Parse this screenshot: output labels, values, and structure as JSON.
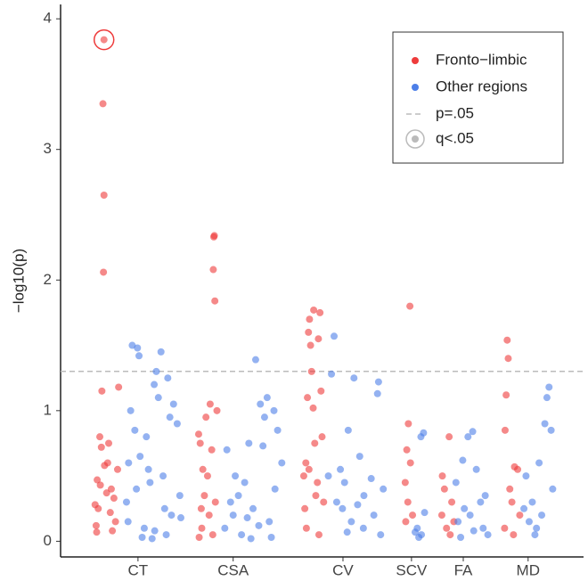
{
  "chart_data": {
    "type": "scatter",
    "ylabel": "−log10(p)",
    "xlim": [
      0,
      100
    ],
    "ylim": [
      -0.12,
      4.11
    ],
    "xticks": [
      {
        "value": 14.8,
        "label": "CT"
      },
      {
        "value": 33.0,
        "label": "CSA"
      },
      {
        "value": 54.0,
        "label": "CV"
      },
      {
        "value": 67.1,
        "label": "SCV"
      },
      {
        "value": 77.0,
        "label": "FA"
      },
      {
        "value": 89.4,
        "label": "MD"
      }
    ],
    "yticks": [
      0,
      1,
      2,
      3,
      4
    ],
    "grid": false,
    "legend": "top-right",
    "threshold": {
      "value": 1.301,
      "label": "p=.05",
      "color": "#bbbbbb"
    },
    "q_points": {
      "name": "q<.05",
      "color": "#ee3b3b",
      "x": [
        8.3
      ],
      "values": [
        3.84
      ]
    },
    "series": [
      {
        "name": "Fronto−limbic",
        "color": "#ee3b3b",
        "x": [
          8.3,
          8.1,
          8.3,
          8.2,
          7.9,
          7.5,
          9.2,
          7.8,
          9.0,
          8.4,
          10.9,
          7.0,
          7.6,
          9.7,
          8.8,
          10.2,
          6.6,
          7.2,
          9.5,
          10.5,
          6.8,
          9.9,
          6.9,
          11.1,
          29.4,
          29.3,
          29.2,
          29.5,
          28.6,
          29.9,
          27.8,
          26.4,
          26.7,
          28.9,
          27.2,
          28.1,
          27.5,
          29.6,
          26.9,
          28.4,
          27.0,
          29.1,
          26.5,
          48.4,
          49.6,
          47.6,
          47.4,
          49.3,
          47.8,
          48.0,
          49.8,
          47.2,
          48.3,
          50.0,
          48.6,
          46.9,
          47.5,
          46.5,
          49.1,
          48.8,
          50.3,
          46.7,
          47.0,
          49.4,
          66.8,
          66.5,
          66.2,
          66.9,
          65.9,
          66.4,
          67.3,
          66.0,
          74.3,
          73.0,
          73.4,
          74.8,
          72.9,
          75.2,
          73.8,
          74.5,
          85.4,
          85.6,
          85.2,
          85.0,
          86.8,
          87.4,
          85.9,
          86.3,
          87.8,
          84.9,
          86.6
        ],
        "values": [
          3.84,
          3.35,
          2.65,
          2.06,
          1.15,
          0.8,
          0.75,
          0.72,
          0.6,
          0.58,
          0.55,
          0.47,
          0.43,
          0.4,
          0.37,
          0.33,
          0.28,
          0.25,
          0.22,
          0.15,
          0.12,
          0.08,
          0.07,
          1.18,
          2.34,
          2.33,
          2.08,
          1.84,
          1.05,
          1.0,
          0.95,
          0.82,
          0.75,
          0.7,
          0.55,
          0.5,
          0.35,
          0.3,
          0.25,
          0.2,
          0.1,
          0.05,
          0.03,
          1.77,
          1.75,
          1.7,
          1.6,
          1.55,
          1.5,
          1.3,
          1.15,
          1.1,
          1.02,
          0.8,
          0.75,
          0.6,
          0.55,
          0.5,
          0.45,
          0.35,
          0.3,
          0.25,
          0.1,
          0.05,
          1.8,
          0.9,
          0.7,
          0.6,
          0.45,
          0.3,
          0.2,
          0.15,
          0.8,
          0.5,
          0.4,
          0.3,
          0.2,
          0.15,
          0.1,
          0.05,
          1.54,
          1.4,
          1.12,
          0.85,
          0.57,
          0.55,
          0.4,
          0.3,
          0.2,
          0.1,
          0.05
        ]
      },
      {
        "name": "Other regions",
        "color": "#4d7fe8",
        "x": [
          13.7,
          14.7,
          19.2,
          15.0,
          18.3,
          20.5,
          17.9,
          18.7,
          21.6,
          13.4,
          20.9,
          22.3,
          14.2,
          16.4,
          15.2,
          13.0,
          16.8,
          19.6,
          17.1,
          14.5,
          22.8,
          12.6,
          19.9,
          21.2,
          23.0,
          12.9,
          16.0,
          18.0,
          20.2,
          15.6,
          17.5,
          37.3,
          39.5,
          38.2,
          40.8,
          39.0,
          41.5,
          36.0,
          38.7,
          31.8,
          42.3,
          33.4,
          35.2,
          41.0,
          34.0,
          32.5,
          36.8,
          33.0,
          35.7,
          39.9,
          37.9,
          31.4,
          34.6,
          40.3,
          36.4,
          52.3,
          51.8,
          56.1,
          60.8,
          60.6,
          55.0,
          57.2,
          53.5,
          51.2,
          59.4,
          54.3,
          61.7,
          58.0,
          52.8,
          56.8,
          53.9,
          59.9,
          55.6,
          57.9,
          54.8,
          61.2,
          69.4,
          68.9,
          69.6,
          68.2,
          67.8,
          69.0,
          68.5,
          78.8,
          77.9,
          76.9,
          79.5,
          75.6,
          81.2,
          80.3,
          77.2,
          78.3,
          76.0,
          80.8,
          79.0,
          81.7,
          76.5,
          93.4,
          93.0,
          92.6,
          93.8,
          91.5,
          89.0,
          94.1,
          90.2,
          88.6,
          92.0,
          89.6,
          91.0,
          90.7
        ],
        "values": [
          1.5,
          1.48,
          1.45,
          1.42,
          1.3,
          1.25,
          1.2,
          1.1,
          1.05,
          1.0,
          0.95,
          0.9,
          0.85,
          0.8,
          0.65,
          0.6,
          0.55,
          0.5,
          0.45,
          0.4,
          0.35,
          0.3,
          0.25,
          0.2,
          0.18,
          0.15,
          0.1,
          0.08,
          0.05,
          0.03,
          0.02,
          1.39,
          1.1,
          1.05,
          1.0,
          0.95,
          0.85,
          0.75,
          0.73,
          0.7,
          0.6,
          0.5,
          0.45,
          0.4,
          0.35,
          0.3,
          0.25,
          0.2,
          0.18,
          0.15,
          0.12,
          0.1,
          0.05,
          0.03,
          0.02,
          1.57,
          1.28,
          1.25,
          1.22,
          1.13,
          0.85,
          0.65,
          0.55,
          0.5,
          0.48,
          0.45,
          0.4,
          0.35,
          0.3,
          0.28,
          0.25,
          0.2,
          0.15,
          0.1,
          0.07,
          0.05,
          0.83,
          0.8,
          0.22,
          0.1,
          0.07,
          0.05,
          0.03,
          0.84,
          0.8,
          0.62,
          0.55,
          0.45,
          0.35,
          0.3,
          0.25,
          0.2,
          0.15,
          0.1,
          0.08,
          0.05,
          0.03,
          1.18,
          1.1,
          0.9,
          0.85,
          0.6,
          0.5,
          0.4,
          0.3,
          0.25,
          0.2,
          0.15,
          0.1,
          0.05
        ]
      }
    ]
  }
}
